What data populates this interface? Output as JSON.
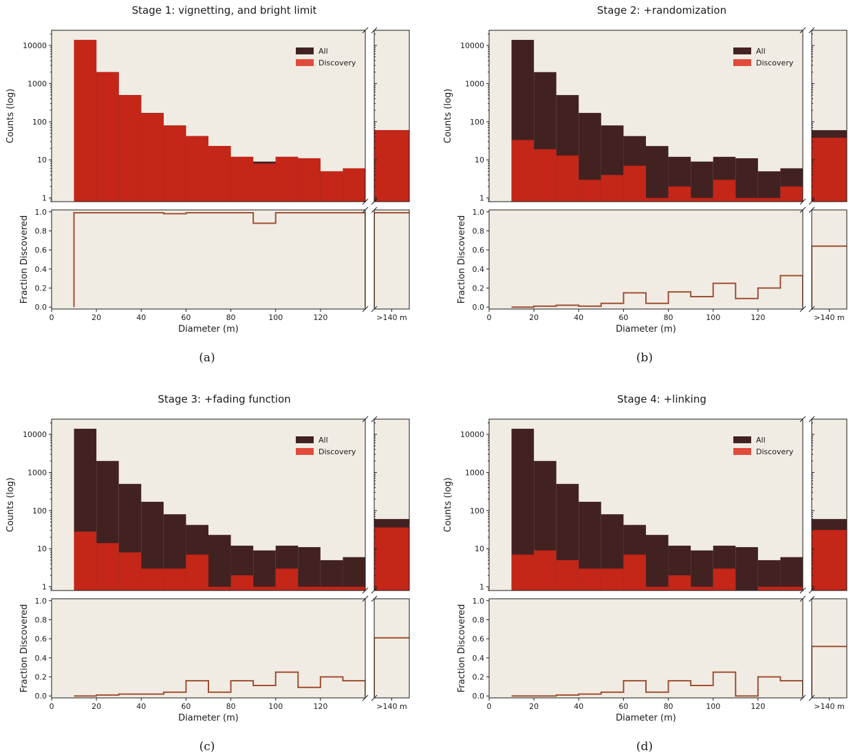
{
  "colors": {
    "background": "#f1ece3",
    "all": "#422221",
    "discovery": "#c42618",
    "discovery_legend": "#e04b3c",
    "fraction_line": "#9e4e33"
  },
  "shared": {
    "legend_all": "All",
    "legend_discovery": "Discovery",
    "ylabel_counts": "Counts (log)",
    "ylabel_fraction": "Fraction Discovered",
    "xlabel": "Diameter (m)",
    "overflow_label": ">140 m",
    "x_ticks": [
      "0",
      "20",
      "40",
      "60",
      "80",
      "100",
      "120"
    ],
    "log_ticks": [
      "1",
      "10",
      "100",
      "1000",
      "10000"
    ],
    "fraction_ticks": [
      "0.0",
      "0.2",
      "0.4",
      "0.6",
      "0.8",
      "1.0"
    ]
  },
  "chart_data": [
    {
      "type": "bar",
      "panel": "(a)",
      "title": "Stage 1: vignetting, and bright limit",
      "bin_edges": [
        10,
        20,
        30,
        40,
        50,
        60,
        70,
        80,
        90,
        100,
        110,
        120,
        130,
        140
      ],
      "all": [
        14000,
        2000,
        500,
        170,
        80,
        42,
        23,
        12,
        9,
        12,
        11,
        5,
        6
      ],
      "discovery": [
        14000,
        2000,
        500,
        167,
        79,
        42,
        23,
        12,
        8,
        12,
        11,
        5,
        6
      ],
      "fraction": [
        0.99,
        0.99,
        0.99,
        0.99,
        0.98,
        0.99,
        0.99,
        0.99,
        0.88,
        0.99,
        0.99,
        0.99,
        0.99
      ],
      "overflow": {
        "all": 60,
        "discovery": 60,
        "fraction": 0.99
      },
      "ylim_counts": [
        0.8,
        25000
      ],
      "ylim_fraction": [
        -0.02,
        1.02
      ],
      "xlim": [
        0,
        140
      ]
    },
    {
      "type": "bar",
      "panel": "(b)",
      "title": "Stage 2: +randomization",
      "bin_edges": [
        10,
        20,
        30,
        40,
        50,
        60,
        70,
        80,
        90,
        100,
        110,
        120,
        130,
        140
      ],
      "all": [
        14000,
        2000,
        500,
        170,
        80,
        42,
        23,
        12,
        9,
        12,
        11,
        5,
        6
      ],
      "discovery": [
        33,
        19,
        13,
        3,
        4,
        7,
        1,
        2,
        1,
        3,
        1,
        1,
        2
      ],
      "fraction": [
        0.0,
        0.01,
        0.02,
        0.01,
        0.04,
        0.15,
        0.04,
        0.16,
        0.11,
        0.25,
        0.09,
        0.2,
        0.33
      ],
      "overflow": {
        "all": 60,
        "discovery": 38,
        "fraction": 0.64
      },
      "ylim_counts": [
        0.8,
        25000
      ],
      "ylim_fraction": [
        -0.02,
        1.02
      ],
      "xlim": [
        0,
        140
      ]
    },
    {
      "type": "bar",
      "panel": "(c)",
      "title": "Stage 3: +fading function",
      "bin_edges": [
        10,
        20,
        30,
        40,
        50,
        60,
        70,
        80,
        90,
        100,
        110,
        120,
        130,
        140
      ],
      "all": [
        14000,
        2000,
        500,
        170,
        80,
        42,
        23,
        12,
        9,
        12,
        11,
        5,
        6
      ],
      "discovery": [
        28,
        14,
        8,
        3,
        3,
        7,
        1,
        2,
        1,
        3,
        1,
        1,
        1
      ],
      "fraction": [
        0.0,
        0.01,
        0.02,
        0.02,
        0.04,
        0.16,
        0.04,
        0.16,
        0.11,
        0.25,
        0.09,
        0.2,
        0.16
      ],
      "overflow": {
        "all": 60,
        "discovery": 36,
        "fraction": 0.61
      },
      "ylim_counts": [
        0.8,
        25000
      ],
      "ylim_fraction": [
        -0.02,
        1.02
      ],
      "xlim": [
        0,
        140
      ]
    },
    {
      "type": "bar",
      "panel": "(d)",
      "title": "Stage 4: +linking",
      "bin_edges": [
        10,
        20,
        30,
        40,
        50,
        60,
        70,
        80,
        90,
        100,
        110,
        120,
        130,
        140
      ],
      "all": [
        14000,
        2000,
        500,
        170,
        80,
        42,
        23,
        12,
        9,
        12,
        11,
        5,
        6
      ],
      "discovery": [
        7,
        9,
        5,
        3,
        3,
        7,
        1,
        2,
        1,
        3,
        0,
        1,
        1
      ],
      "fraction": [
        0.0,
        0.0,
        0.01,
        0.02,
        0.04,
        0.16,
        0.04,
        0.16,
        0.11,
        0.25,
        0.0,
        0.2,
        0.16
      ],
      "overflow": {
        "all": 60,
        "discovery": 31,
        "fraction": 0.52
      },
      "ylim_counts": [
        0.8,
        25000
      ],
      "ylim_fraction": [
        -0.02,
        1.02
      ],
      "xlim": [
        0,
        140
      ]
    }
  ]
}
